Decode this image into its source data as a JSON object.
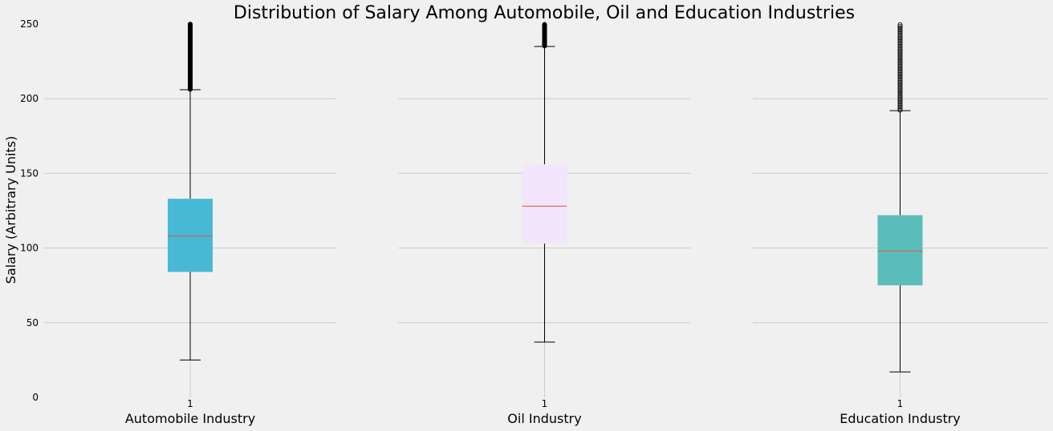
{
  "chart_data": {
    "type": "box",
    "title": "Distribution of Salary Among Automobile, Oil and Education Industries",
    "ylabel": "Salary (Arbitrary Units)",
    "ylim": [
      0,
      250
    ],
    "yticks": [
      "0",
      "50",
      "100",
      "150",
      "200",
      "250"
    ],
    "grid": true,
    "shared_y": true,
    "panels": [
      {
        "xlabel": "Automobile Industry",
        "xtick": "1",
        "box": {
          "whislo": 25,
          "q1": 84,
          "med": 108,
          "q3": 133,
          "whishi": 206
        },
        "outlier_range": [
          206,
          250
        ],
        "box_color": "#48b9d5",
        "median_color": "#e05545",
        "flier_style": "dense"
      },
      {
        "xlabel": "Oil Industry",
        "xtick": "1",
        "box": {
          "whislo": 37,
          "q1": 103,
          "med": 128,
          "q3": 156,
          "whishi": 235
        },
        "outlier_range": [
          235,
          250
        ],
        "box_color": "#f3e5fb",
        "median_color": "#e05545",
        "flier_style": "dense"
      },
      {
        "xlabel": "Education Industry",
        "xtick": "1",
        "box": {
          "whislo": 17,
          "q1": 75,
          "med": 98,
          "q3": 122,
          "whishi": 192
        },
        "outlier_range": [
          192,
          250
        ],
        "box_color": "#5bbdb9",
        "median_color": "#e05545",
        "flier_style": "sparse"
      }
    ]
  }
}
